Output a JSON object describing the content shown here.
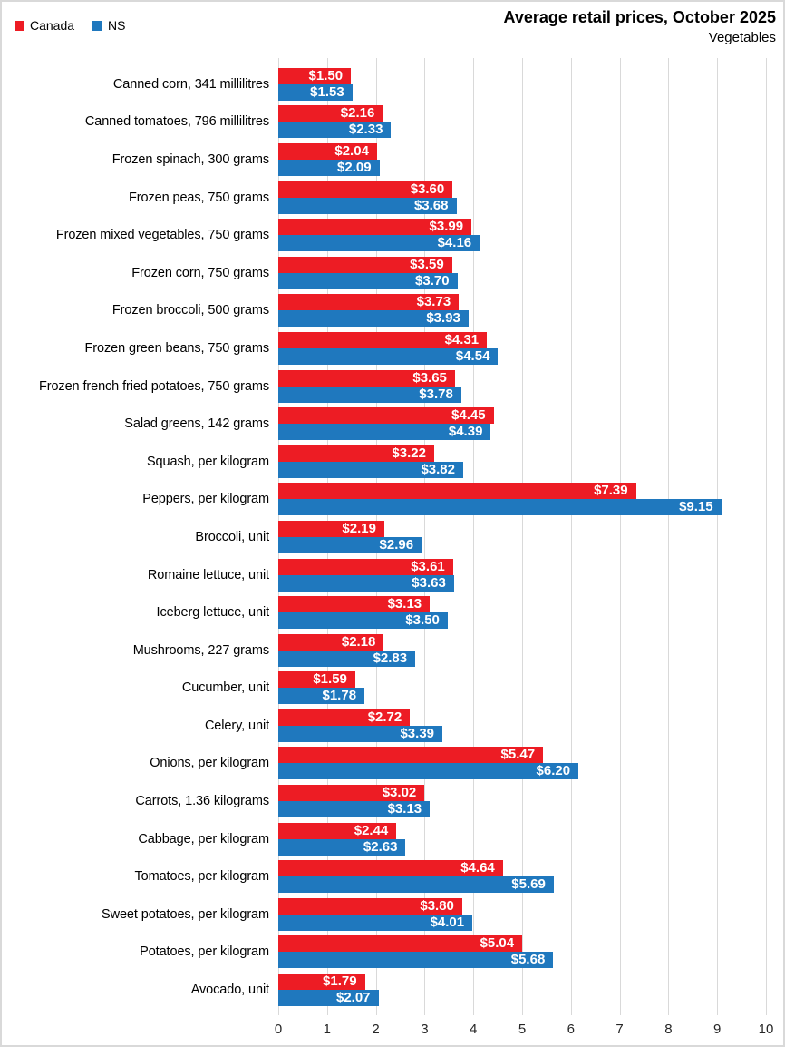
{
  "title": "Average retail prices, October 2025",
  "subtitle": "Vegetables",
  "legend": [
    {
      "label": "Canada",
      "color": "#ED1C24"
    },
    {
      "label": "NS",
      "color": "#1F78BE"
    }
  ],
  "colors": {
    "canada_bar": "#ED1C24",
    "ns_bar": "#1F78BE",
    "gridline": "#D9D9D9",
    "value_label_text": "#FFFFFF",
    "frame_border": "#D9D9D9"
  },
  "chart_data": {
    "type": "bar",
    "orientation": "horizontal",
    "title": "Average retail prices, October 2025",
    "subtitle": "Vegetables",
    "value_prefix": "$",
    "value_decimals": 2,
    "xlim": [
      0,
      10
    ],
    "x_ticks": [
      0,
      1,
      2,
      3,
      4,
      5,
      6,
      7,
      8,
      9,
      10
    ],
    "grid": true,
    "legend_position": "top-left",
    "categories": [
      "Canned corn, 341 millilitres",
      "Canned tomatoes, 796 millilitres",
      "Frozen spinach, 300 grams",
      "Frozen peas, 750 grams",
      "Frozen mixed vegetables, 750 grams",
      "Frozen corn, 750 grams",
      "Frozen broccoli, 500 grams",
      "Frozen green beans, 750 grams",
      "Frozen french fried potatoes, 750 grams",
      "Salad greens, 142 grams",
      "Squash, per kilogram",
      "Peppers, per kilogram",
      "Broccoli, unit",
      "Romaine lettuce, unit",
      "Iceberg lettuce, unit",
      "Mushrooms, 227 grams",
      "Cucumber, unit",
      "Celery, unit",
      "Onions, per kilogram",
      "Carrots, 1.36 kilograms",
      "Cabbage, per kilogram",
      "Tomatoes, per kilogram",
      "Sweet potatoes, per kilogram",
      "Potatoes, per kilogram",
      "Avocado, unit"
    ],
    "series": [
      {
        "name": "Canada",
        "color": "#ED1C24",
        "values": [
          1.5,
          2.16,
          2.04,
          3.6,
          3.99,
          3.59,
          3.73,
          4.31,
          3.65,
          4.45,
          3.22,
          7.39,
          2.19,
          3.61,
          3.13,
          2.18,
          1.59,
          2.72,
          5.47,
          3.02,
          2.44,
          4.64,
          3.8,
          5.04,
          1.79
        ]
      },
      {
        "name": "NS",
        "color": "#1F78BE",
        "values": [
          1.53,
          2.33,
          2.09,
          3.68,
          4.16,
          3.7,
          3.93,
          4.54,
          3.78,
          4.39,
          3.82,
          9.15,
          2.96,
          3.63,
          3.5,
          2.83,
          1.78,
          3.39,
          6.2,
          3.13,
          2.63,
          5.69,
          4.01,
          5.68,
          2.07
        ]
      }
    ]
  }
}
